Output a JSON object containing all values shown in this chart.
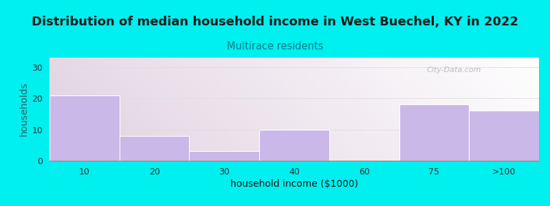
{
  "title": "Distribution of median household income in West Buechel, KY in 2022",
  "subtitle": "Multirace residents",
  "xlabel": "household income ($1000)",
  "ylabel": "households",
  "categories": [
    "10",
    "20",
    "30",
    "40",
    "60",
    "75",
    ">100"
  ],
  "values": [
    21,
    8,
    3,
    10,
    0,
    18,
    16
  ],
  "bar_color": "#C9B8E8",
  "bar_edgecolor": "#FFFFFF",
  "background_color": "#00EFEF",
  "title_color": "#1a1a1a",
  "subtitle_color": "#008080",
  "ylabel_color": "#2a6060",
  "xlabel_color": "#1a1a1a",
  "tick_color": "#333333",
  "yticks": [
    0,
    10,
    20,
    30
  ],
  "ylim": [
    0,
    33
  ],
  "title_fontsize": 13,
  "subtitle_fontsize": 10.5,
  "axis_label_fontsize": 10,
  "watermark_text": "City-Data.com",
  "watermark_color": "#AAAAAA",
  "grid_color": "#DDDDDD",
  "plot_bg_color_topleft": "#E8F5E8",
  "plot_bg_color_topright": "#F8FFF8",
  "plot_bg_color_bottomleft": "#D0EDD0",
  "plot_bg_color_bottomright": "#FAFAFA"
}
